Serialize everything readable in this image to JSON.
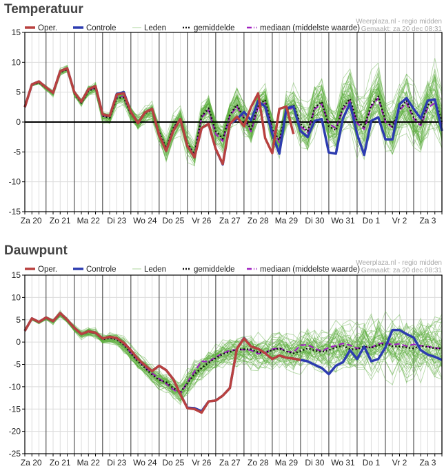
{
  "colors": {
    "oper": "#b8413f",
    "controle": "#2d3cb0",
    "leden": "#5aae3c",
    "gemiddelde": "#111111",
    "mediaan": "#a020c0",
    "grid": "#dcdcdc",
    "dayline": "#555555",
    "zero": "#000000"
  },
  "legend": [
    {
      "key": "oper",
      "label": "Oper.",
      "style": "thick"
    },
    {
      "key": "controle",
      "label": "Controle",
      "style": "thick"
    },
    {
      "key": "leden",
      "label": "Leden",
      "style": "thin"
    },
    {
      "key": "gemiddelde",
      "label": "gemiddelde",
      "style": "dotted"
    },
    {
      "key": "mediaan",
      "label": "mediaan (middelste waarde)",
      "style": "dashed"
    }
  ],
  "source_line1": "Weerplaza.nl - regio midden",
  "source_line2": "Gemaakt: za 20 dec 08:31",
  "chart_data": [
    {
      "type": "line",
      "title": "Temperatuur",
      "ylim": [
        -15,
        15
      ],
      "yticks": [
        15,
        10,
        5,
        0,
        -5,
        -10,
        -15
      ],
      "x_unit": "6-hourly steps starting Za 20 06:00",
      "day_labels": [
        "Za 20",
        "Zo 21",
        "Ma 22",
        "Di 23",
        "Wo 24",
        "Do 25",
        "Vr 26",
        "Za 27",
        "Zo 28",
        "Ma 29",
        "Di 30",
        "Wo 31",
        "Do 1",
        "Vr 2",
        "Za 3"
      ],
      "grid": true,
      "legend_position": "top",
      "series": [
        {
          "name": "Oper.",
          "key": "oper",
          "values": [
            2.5,
            6.3,
            6.8,
            5.8,
            4.9,
            8.5,
            9.0,
            5.0,
            3.4,
            5.5,
            6.0,
            1.3,
            1.0,
            4.6,
            4.8,
            1.7,
            -0.2,
            1.6,
            2.2,
            -2.2,
            -4.8,
            -1.5,
            0.5,
            -4.0,
            -5.9,
            -1.0,
            -0.3,
            -4.5,
            -7.0,
            -0.3,
            0.9,
            -0.7,
            2.5,
            4.8,
            -2.7,
            -5.2,
            2.2,
            2.6,
            -2.0
          ]
        },
        {
          "name": "Controle",
          "key": "controle",
          "values": [
            2.5,
            6.3,
            6.8,
            5.8,
            4.9,
            8.5,
            9.0,
            5.0,
            3.4,
            5.5,
            6.0,
            1.3,
            1.0,
            4.7,
            5.0,
            1.7,
            -0.2,
            1.6,
            2.2,
            -2.2,
            -4.8,
            -1.5,
            0.5,
            -4.0,
            -5.9,
            -1.0,
            -0.3,
            -4.5,
            -7.1,
            -0.3,
            0.5,
            1.7,
            0.3,
            3.5,
            2.6,
            -2.0,
            -5.3,
            2.3,
            2.6,
            -1.5,
            -2.5,
            0.2,
            0.5,
            -5.1,
            -5.3,
            0.6,
            3.1,
            -2.0,
            -5.5,
            0.2,
            0.8,
            -2.9,
            -2.9,
            3.0,
            4.0,
            2.2,
            0.6,
            3.6,
            3.8,
            -1.5
          ]
        },
        {
          "name": "gemiddelde",
          "key": "gemiddelde",
          "values": [
            2.5,
            6.2,
            6.6,
            5.7,
            4.8,
            8.3,
            8.8,
            4.8,
            3.2,
            5.2,
            5.7,
            1.0,
            0.7,
            4.0,
            4.1,
            1.4,
            0.0,
            1.5,
            2.0,
            -1.7,
            -4.4,
            -1.0,
            0.6,
            -3.6,
            -5.4,
            1.0,
            2.3,
            -1.5,
            -2.8,
            1.2,
            2.9,
            0.6,
            -1.2,
            2.8,
            3.7,
            -1.3,
            -3.0,
            2.0,
            2.9,
            -0.3,
            -1.6,
            2.4,
            3.4,
            -0.7,
            -1.4,
            2.5,
            3.9,
            0.1,
            -0.8,
            2.8,
            4.3,
            0.3,
            -0.8,
            2.2,
            3.6,
            0.8,
            -0.3,
            2.8,
            3.8,
            0.0
          ]
        },
        {
          "name": "mediaan",
          "key": "mediaan",
          "values": [
            2.5,
            6.2,
            6.7,
            5.8,
            4.9,
            8.4,
            8.9,
            4.9,
            3.3,
            5.3,
            5.8,
            1.1,
            0.8,
            4.2,
            4.3,
            1.4,
            0.0,
            1.5,
            2.1,
            -1.8,
            -4.5,
            -1.1,
            0.6,
            -3.7,
            -5.6,
            0.8,
            2.0,
            -2.0,
            -3.2,
            1.0,
            2.6,
            0.7,
            -1.6,
            2.4,
            3.2,
            -1.0,
            -3.4,
            1.8,
            2.5,
            -0.7,
            -1.8,
            2.2,
            3.0,
            -0.3,
            -1.0,
            2.1,
            3.5,
            -0.2,
            -1.2,
            2.6,
            4.0,
            0.0,
            -0.9,
            2.0,
            3.2,
            0.6,
            -0.6,
            2.4,
            3.2,
            -0.3
          ]
        }
      ]
    },
    {
      "type": "line",
      "title": "Dauwpunt",
      "ylim": [
        -25,
        15
      ],
      "yticks": [
        15,
        10,
        5,
        0,
        -5,
        -10,
        -15,
        -20,
        -25
      ],
      "x_unit": "6-hourly steps starting Za 20 06:00",
      "day_labels": [
        "Za 20",
        "Zo 21",
        "Ma 22",
        "Di 23",
        "Wo 24",
        "Do 25",
        "Vr 26",
        "Za 27",
        "Zo 28",
        "Ma 29",
        "Di 30",
        "Wo 31",
        "Do 1",
        "Vr 2",
        "Za 3"
      ],
      "grid": true,
      "legend_position": "top",
      "series": [
        {
          "name": "Oper.",
          "key": "oper",
          "values": [
            2.5,
            5.3,
            4.5,
            5.5,
            4.7,
            6.5,
            5.0,
            3.2,
            1.8,
            2.4,
            2.1,
            0.8,
            1.2,
            0.9,
            -0.2,
            -1.8,
            -3.8,
            -5.2,
            -6.5,
            -5.3,
            -6.3,
            -8.3,
            -11.7,
            -14.8,
            -15.0,
            -15.8,
            -13.3,
            -13.1,
            -12.0,
            -10.3,
            -1.5,
            0.8,
            -1.0,
            -1.5,
            -2.5,
            -3.8,
            -3.0,
            -3.5,
            -3.7,
            -4.0
          ]
        },
        {
          "name": "Controle",
          "key": "controle",
          "values": [
            2.5,
            5.3,
            4.5,
            5.5,
            4.7,
            6.5,
            5.0,
            3.2,
            1.8,
            2.4,
            2.1,
            0.8,
            1.2,
            0.9,
            -0.2,
            -1.8,
            -3.8,
            -5.2,
            -6.5,
            -5.3,
            -6.3,
            -8.3,
            -11.7,
            -14.7,
            -14.8,
            -15.5,
            -13.3,
            -13.1,
            -12.0,
            -10.3,
            -1.5,
            0.9,
            -1.0,
            -1.5,
            -2.5,
            -3.8,
            -3.0,
            -3.5,
            -3.7,
            -4.0,
            -4.3,
            -5.1,
            -5.8,
            -7.2,
            -5.3,
            -4.5,
            -1.8,
            -3.8,
            -1.0,
            -4.3,
            -3.8,
            -1.2,
            2.7,
            2.7,
            1.8,
            1.0,
            -1.8,
            -2.8,
            -3.3,
            -4.0
          ]
        },
        {
          "name": "gemiddelde",
          "key": "gemiddelde",
          "values": [
            2.5,
            5.2,
            4.4,
            5.4,
            4.6,
            6.3,
            4.9,
            3.1,
            1.7,
            2.3,
            2.0,
            0.6,
            0.9,
            0.6,
            -0.6,
            -2.5,
            -4.3,
            -5.8,
            -7.3,
            -8.5,
            -9.0,
            -10.3,
            -11.2,
            -9.3,
            -7.2,
            -5.8,
            -4.6,
            -3.6,
            -2.7,
            -2.2,
            -1.6,
            -1.6,
            -1.6,
            -2.3,
            -2.3,
            -1.8,
            -1.4,
            -2.1,
            -2.5,
            -2.0,
            -1.4,
            -1.9,
            -2.2,
            -1.8,
            -1.2,
            -0.8,
            -1.6,
            -1.6,
            -1.0,
            -1.3,
            -0.7,
            -0.4,
            -0.9,
            -1.0,
            -1.2,
            -1.4,
            -0.8,
            -1.1,
            -1.4,
            -1.4
          ]
        },
        {
          "name": "mediaan",
          "key": "mediaan",
          "values": [
            2.5,
            5.2,
            4.5,
            5.5,
            4.6,
            6.4,
            4.9,
            3.1,
            1.8,
            2.3,
            2.0,
            0.7,
            1.0,
            0.7,
            -0.5,
            -2.4,
            -4.2,
            -5.6,
            -7.0,
            -8.2,
            -9.3,
            -10.6,
            -11.6,
            -9.0,
            -6.6,
            -4.3,
            -4.4,
            -3.4,
            -2.5,
            -1.9,
            -1.7,
            -1.7,
            -1.8,
            -2.6,
            -2.4,
            -1.6,
            -1.3,
            -2.1,
            -2.3,
            -0.7,
            -0.6,
            -1.4,
            -2.1,
            -1.2,
            -0.8,
            -0.3,
            -0.7,
            -1.4,
            -1.1,
            -1.2,
            -0.4,
            -0.1,
            -0.6,
            -0.4,
            -0.9,
            -0.5,
            -0.8,
            -1.0,
            -1.3,
            -1.5
          ]
        }
      ]
    }
  ]
}
